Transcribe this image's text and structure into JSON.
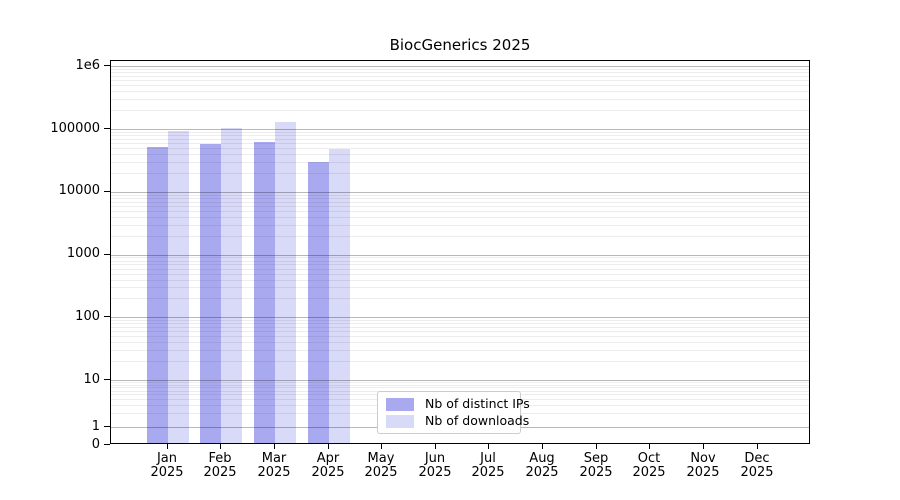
{
  "chart_data": {
    "type": "bar",
    "title": "BiocGenerics 2025",
    "y_scale": "log",
    "grid": true,
    "legend_position": "lower center",
    "ylim": [
      0,
      1000000
    ],
    "y_ticks": [
      {
        "label": "1e6",
        "value": 1000000
      },
      {
        "label": "100000",
        "value": 100000
      },
      {
        "label": "10000",
        "value": 10000
      },
      {
        "label": "1000",
        "value": 1000
      },
      {
        "label": "100",
        "value": 100
      },
      {
        "label": "10",
        "value": 10
      },
      {
        "label": "1",
        "value": 1
      },
      {
        "label": "0",
        "value": 0
      }
    ],
    "categories": [
      "Jan",
      "Feb",
      "Mar",
      "Apr",
      "May",
      "Jun",
      "Jul",
      "Aug",
      "Sep",
      "Oct",
      "Nov",
      "Dec"
    ],
    "x_tick_year": "2025",
    "series": [
      {
        "name": "Nb of distinct IPs",
        "color": "#a9a9f0",
        "values": [
          51000,
          58000,
          63000,
          30000,
          null,
          null,
          null,
          null,
          null,
          null,
          null,
          null
        ]
      },
      {
        "name": "Nb of downloads",
        "color": "#d9d9f8",
        "values": [
          93000,
          102000,
          131000,
          48000,
          null,
          null,
          null,
          null,
          null,
          null,
          null,
          null
        ]
      }
    ]
  }
}
